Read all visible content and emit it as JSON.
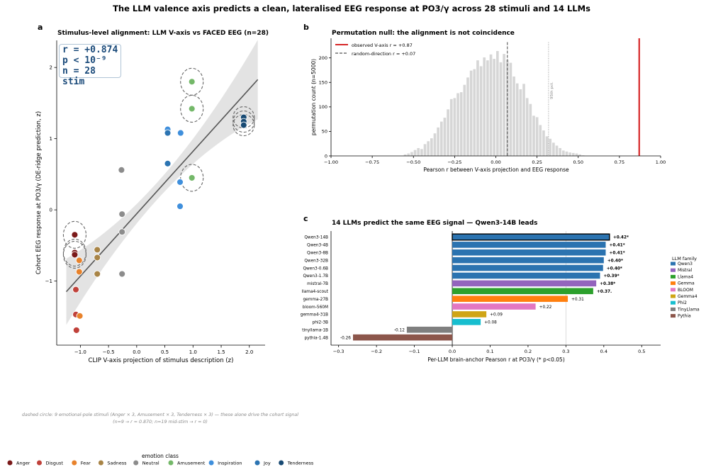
{
  "figure": {
    "title": "The LLM valence axis predicts a clean, lateralised EEG response at PO3/γ across 28 stimuli and 14 LLMs"
  },
  "panel_a": {
    "letter": "a",
    "stats": [
      "r = +0.874",
      "p < 10⁻⁹",
      "n = 28 stim"
    ],
    "footnote_line1": "dashed circle: 9 emotional-pole stimuli (Anger × 3, Amusement × 3, Tenderness × 3) — these alone drive the cohort signal",
    "footnote_line2": "(n=9 → r = 0.870;  n=19 mid-stim → r = 0)",
    "legend_title": "emotion class"
  },
  "panel_b": {
    "letter": "b",
    "threshold_label": "95th pct."
  },
  "panel_c": {
    "letter": "c",
    "legend_title": "LLM family"
  },
  "chart_data": [
    {
      "type": "scatter",
      "title": "Stimulus-level alignment: LLM V-axis vs FACED EEG (n=28)",
      "xlabel": "CLIP V-axis projection of stimulus description  (z)",
      "ylabel": "Cohort EEG response at PO3/γ  (DE-ridge prediction, z)",
      "xlim": [
        -1.42,
        2.28
      ],
      "ylim": [
        -1.9,
        2.38
      ],
      "xticks": [
        "−1.0",
        "−0.5",
        "0.0",
        "0.5",
        "1.0",
        "1.5",
        "2.0"
      ],
      "yticks": [
        "−1",
        "0",
        "1",
        "2"
      ],
      "grid": false,
      "fit_line": {
        "x": [
          -1.25,
          2.15
        ],
        "y": [
          -1.15,
          1.83
        ]
      },
      "classes": [
        {
          "name": "Anger",
          "color": "#7b1a1a"
        },
        {
          "name": "Disgust",
          "color": "#c0413a"
        },
        {
          "name": "Fear",
          "color": "#e8822b"
        },
        {
          "name": "Sadness",
          "color": "#a88446"
        },
        {
          "name": "Neutral",
          "color": "#8c8c8c"
        },
        {
          "name": "Amusement",
          "color": "#74b869"
        },
        {
          "name": "Inspiration",
          "color": "#3f8fdc"
        },
        {
          "name": "Joy",
          "color": "#2c74b2"
        },
        {
          "name": "Tenderness",
          "color": "#184a73"
        }
      ],
      "points": [
        {
          "class": "Anger",
          "x": -1.1,
          "y": -0.35,
          "circled": true
        },
        {
          "class": "Anger",
          "x": -1.1,
          "y": -0.6,
          "circled": true
        },
        {
          "class": "Anger",
          "x": -1.1,
          "y": -0.63,
          "circled": true
        },
        {
          "class": "Disgust",
          "x": -1.08,
          "y": -1.12
        },
        {
          "class": "Disgust",
          "x": -1.08,
          "y": -1.47
        },
        {
          "class": "Disgust",
          "x": -1.07,
          "y": -1.69
        },
        {
          "class": "Fear",
          "x": -1.02,
          "y": -0.71
        },
        {
          "class": "Fear",
          "x": -1.02,
          "y": -0.87
        },
        {
          "class": "Fear",
          "x": -1.01,
          "y": -1.49
        },
        {
          "class": "Sadness",
          "x": -0.7,
          "y": -0.56
        },
        {
          "class": "Sadness",
          "x": -0.7,
          "y": -0.67
        },
        {
          "class": "Sadness",
          "x": -0.7,
          "y": -0.9
        },
        {
          "class": "Neutral",
          "x": -0.27,
          "y": 0.56
        },
        {
          "class": "Neutral",
          "x": -0.26,
          "y": -0.06
        },
        {
          "class": "Neutral",
          "x": -0.26,
          "y": -0.31
        },
        {
          "class": "Neutral",
          "x": -0.26,
          "y": -0.9
        },
        {
          "class": "Amusement",
          "x": 0.98,
          "y": 1.8,
          "circled": true
        },
        {
          "class": "Amusement",
          "x": 0.98,
          "y": 1.42,
          "circled": true
        },
        {
          "class": "Amusement",
          "x": 0.98,
          "y": 0.45,
          "circled": true
        },
        {
          "class": "Inspiration",
          "x": 0.55,
          "y": 1.13
        },
        {
          "class": "Inspiration",
          "x": 0.78,
          "y": 1.08
        },
        {
          "class": "Inspiration",
          "x": 0.77,
          "y": 0.39
        },
        {
          "class": "Inspiration",
          "x": 0.77,
          "y": 0.05
        },
        {
          "class": "Joy",
          "x": 0.55,
          "y": 1.08
        },
        {
          "class": "Joy",
          "x": 0.55,
          "y": 0.65
        },
        {
          "class": "Tenderness",
          "x": 1.9,
          "y": 1.3,
          "circled": true
        },
        {
          "class": "Tenderness",
          "x": 1.9,
          "y": 1.24,
          "circled": true
        },
        {
          "class": "Tenderness",
          "x": 1.9,
          "y": 1.19,
          "circled": true
        }
      ]
    },
    {
      "type": "bar",
      "title": "Permutation null:  the alignment is not coincidence",
      "xlabel": "Pearson r between V-axis projection and EEG response",
      "ylabel": "permutation count (n=5000)",
      "xlim": [
        -1.0,
        1.0
      ],
      "ylim": [
        0,
        240
      ],
      "xticks": [
        "−1.00",
        "−0.75",
        "−0.50",
        "−0.25",
        "0.00",
        "0.25",
        "0.50",
        "0.75",
        "1.00"
      ],
      "yticks": [
        "0",
        "50",
        "100",
        "150",
        "200"
      ],
      "bin_width": 0.02,
      "bins": [
        {
          "x": -0.55,
          "count": 3
        },
        {
          "x": -0.53,
          "count": 5
        },
        {
          "x": -0.51,
          "count": 8
        },
        {
          "x": -0.49,
          "count": 12
        },
        {
          "x": -0.47,
          "count": 16
        },
        {
          "x": -0.45,
          "count": 14
        },
        {
          "x": -0.43,
          "count": 24
        },
        {
          "x": -0.41,
          "count": 30
        },
        {
          "x": -0.39,
          "count": 36
        },
        {
          "x": -0.37,
          "count": 46
        },
        {
          "x": -0.35,
          "count": 58
        },
        {
          "x": -0.33,
          "count": 70
        },
        {
          "x": -0.31,
          "count": 78
        },
        {
          "x": -0.29,
          "count": 95
        },
        {
          "x": -0.27,
          "count": 116
        },
        {
          "x": -0.25,
          "count": 118
        },
        {
          "x": -0.23,
          "count": 128
        },
        {
          "x": -0.21,
          "count": 130
        },
        {
          "x": -0.19,
          "count": 145
        },
        {
          "x": -0.17,
          "count": 160
        },
        {
          "x": -0.15,
          "count": 174
        },
        {
          "x": -0.13,
          "count": 177
        },
        {
          "x": -0.11,
          "count": 195
        },
        {
          "x": -0.09,
          "count": 183
        },
        {
          "x": -0.07,
          "count": 201
        },
        {
          "x": -0.05,
          "count": 195
        },
        {
          "x": -0.03,
          "count": 207
        },
        {
          "x": -0.01,
          "count": 198
        },
        {
          "x": 0.01,
          "count": 214
        },
        {
          "x": 0.03,
          "count": 191
        },
        {
          "x": 0.05,
          "count": 208
        },
        {
          "x": 0.07,
          "count": 196
        },
        {
          "x": 0.09,
          "count": 190
        },
        {
          "x": 0.11,
          "count": 162
        },
        {
          "x": 0.13,
          "count": 148
        },
        {
          "x": 0.15,
          "count": 136
        },
        {
          "x": 0.17,
          "count": 147
        },
        {
          "x": 0.19,
          "count": 118
        },
        {
          "x": 0.21,
          "count": 106
        },
        {
          "x": 0.23,
          "count": 82
        },
        {
          "x": 0.25,
          "count": 79
        },
        {
          "x": 0.27,
          "count": 63
        },
        {
          "x": 0.29,
          "count": 52
        },
        {
          "x": 0.31,
          "count": 40
        },
        {
          "x": 0.33,
          "count": 35
        },
        {
          "x": 0.35,
          "count": 27
        },
        {
          "x": 0.37,
          "count": 21
        },
        {
          "x": 0.39,
          "count": 16
        },
        {
          "x": 0.41,
          "count": 11
        },
        {
          "x": 0.43,
          "count": 9
        },
        {
          "x": 0.45,
          "count": 7
        },
        {
          "x": 0.47,
          "count": 6
        },
        {
          "x": 0.49,
          "count": 5
        },
        {
          "x": 0.51,
          "count": 3
        },
        {
          "x": 0.53,
          "count": 1
        }
      ],
      "observed": {
        "label": "observed V-axis r = +0.87",
        "value": 0.87,
        "color": "#d62728"
      },
      "random_mean": {
        "label": "random-direction r = +0.07",
        "value": 0.07
      },
      "threshold_95": 0.32,
      "legend_position": "top-left"
    },
    {
      "type": "bar",
      "orientation": "horizontal",
      "title": "14 LLMs predict the same EEG signal — Qwen3-14B leads",
      "xlabel": "Per-LLM brain-anchor Pearson r at PO3/γ  (* p<0.05)",
      "xlim": [
        -0.32,
        0.55
      ],
      "xticks": [
        "−0.3",
        "−0.2",
        "−0.1",
        "0.0",
        "0.1",
        "0.2",
        "0.3",
        "0.4",
        "0.5"
      ],
      "families": [
        {
          "name": "Qwen3",
          "color": "#2b73b0"
        },
        {
          "name": "Mistral",
          "color": "#9364bd"
        },
        {
          "name": "Llama4",
          "color": "#2ca02c"
        },
        {
          "name": "Gemma",
          "color": "#ff7f0e"
        },
        {
          "name": "BLOOM",
          "color": "#e377c2"
        },
        {
          "name": "Gemma4",
          "color": "#cfa516"
        },
        {
          "name": "Phi2",
          "color": "#17becf"
        },
        {
          "name": "TinyLlama",
          "color": "#7f7f7f"
        },
        {
          "name": "Pythia",
          "color": "#8c564b"
        }
      ],
      "bars": [
        {
          "model": "Qwen3-14B",
          "family": "Qwen3",
          "value": 0.415,
          "label": "+0.42*",
          "bold": true,
          "highlight": true
        },
        {
          "model": "Qwen3-4B",
          "family": "Qwen3",
          "value": 0.405,
          "label": "+0.41*",
          "bold": true
        },
        {
          "model": "Qwen3-8B",
          "family": "Qwen3",
          "value": 0.405,
          "label": "+0.41*",
          "bold": true
        },
        {
          "model": "Qwen3-32B",
          "family": "Qwen3",
          "value": 0.4,
          "label": "+0.40*",
          "bold": true
        },
        {
          "model": "Qwen3-0.6B",
          "family": "Qwen3",
          "value": 0.398,
          "label": "+0.40*",
          "bold": true
        },
        {
          "model": "Qwen3-1.7B",
          "family": "Qwen3",
          "value": 0.39,
          "label": "+0.39*",
          "bold": true
        },
        {
          "model": "mistral-7B",
          "family": "Mistral",
          "value": 0.38,
          "label": "+0.38*",
          "bold": true
        },
        {
          "model": "llama4-scout",
          "family": "Llama4",
          "value": 0.372,
          "label": "+0.37.",
          "bold": true
        },
        {
          "model": "gemma-27B",
          "family": "Gemma",
          "value": 0.305,
          "label": "+0.31",
          "bold": false
        },
        {
          "model": "bloom-560M",
          "family": "BLOOM",
          "value": 0.22,
          "label": "+0.22",
          "bold": false
        },
        {
          "model": "gemma4-31B",
          "family": "Gemma4",
          "value": 0.09,
          "label": "+0.09",
          "bold": false
        },
        {
          "model": "phi2-3B",
          "family": "Phi2",
          "value": 0.075,
          "label": "+0.08",
          "bold": false
        },
        {
          "model": "tinyllama-1B",
          "family": "TinyLlama",
          "value": -0.12,
          "label": "-0.12",
          "bold": false
        },
        {
          "model": "pythia-1.4B",
          "family": "Pythia",
          "value": -0.262,
          "label": "-0.26",
          "bold": false
        }
      ]
    }
  ]
}
